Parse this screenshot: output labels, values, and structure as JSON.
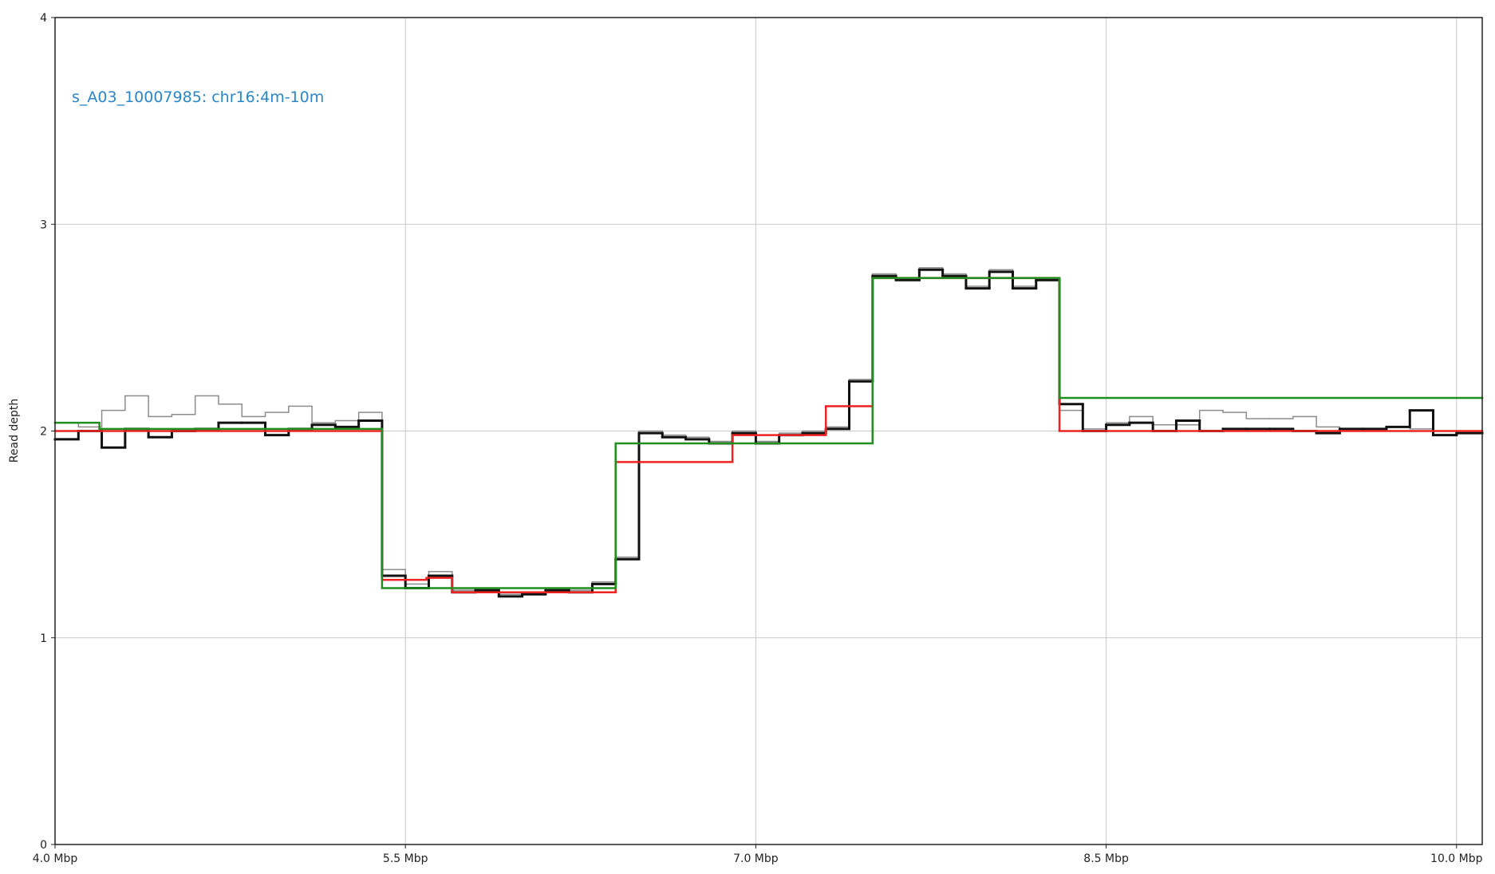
{
  "chart_data": {
    "type": "step",
    "annotation": "s_A03_10007985: chr16:4m-10m",
    "ylabel": "Read depth",
    "xlim": [
      4.0,
      10.11
    ],
    "ylim": [
      0,
      4
    ],
    "xticks": [
      {
        "value": 4.0,
        "label": "4.0 Mbp"
      },
      {
        "value": 5.5,
        "label": "5.5 Mbp"
      },
      {
        "value": 7.0,
        "label": "7.0 Mbp"
      },
      {
        "value": 8.5,
        "label": "8.5 Mbp"
      },
      {
        "value": 10.0,
        "label": "10.0 Mbp"
      }
    ],
    "yticks": [
      0,
      1,
      2,
      3,
      4
    ],
    "grid": true,
    "series": [
      {
        "color": "#8c8c8c",
        "width": 1.5,
        "bins": [
          4.0,
          4.1,
          4.2,
          4.3,
          4.4,
          4.5,
          4.6,
          4.7,
          4.8,
          4.9,
          5.0,
          5.1,
          5.2,
          5.3,
          5.4,
          5.5,
          5.6,
          5.7,
          5.8,
          5.9,
          6.0,
          6.1,
          6.2,
          6.3,
          6.4,
          6.5,
          6.6,
          6.7,
          6.8,
          6.9,
          7.0,
          7.1,
          7.2,
          7.3,
          7.4,
          7.5,
          7.6,
          7.7,
          7.8,
          7.9,
          8.0,
          8.1,
          8.2,
          8.3,
          8.4,
          8.5,
          8.6,
          8.7,
          8.8,
          8.9,
          9.0,
          9.1,
          9.2,
          9.3,
          9.4,
          9.5,
          9.6,
          9.7,
          9.8,
          9.9,
          10.0,
          10.11
        ],
        "values": [
          2.04,
          2.02,
          2.1,
          2.17,
          2.07,
          2.08,
          2.17,
          2.13,
          2.07,
          2.09,
          2.12,
          2.04,
          2.05,
          2.09,
          1.33,
          1.26,
          1.32,
          1.23,
          1.24,
          1.21,
          1.22,
          1.24,
          1.23,
          1.27,
          1.39,
          2.0,
          1.98,
          1.97,
          1.95,
          2.0,
          1.95,
          1.99,
          2.0,
          2.02,
          2.25,
          2.76,
          2.74,
          2.79,
          2.76,
          2.7,
          2.78,
          2.7,
          2.74,
          2.1,
          2.01,
          2.04,
          2.07,
          2.03,
          2.03,
          2.1,
          2.09,
          2.06,
          2.06,
          2.07,
          2.02,
          2.01,
          2.01,
          2.02,
          2.01,
          2.0,
          2.0
        ]
      },
      {
        "color": "#111111",
        "width": 3,
        "bins": [
          4.0,
          4.1,
          4.2,
          4.3,
          4.4,
          4.5,
          4.6,
          4.7,
          4.8,
          4.9,
          5.0,
          5.1,
          5.2,
          5.3,
          5.4,
          5.5,
          5.6,
          5.7,
          5.8,
          5.9,
          6.0,
          6.1,
          6.2,
          6.3,
          6.4,
          6.5,
          6.6,
          6.7,
          6.8,
          6.9,
          7.0,
          7.1,
          7.2,
          7.3,
          7.4,
          7.5,
          7.6,
          7.7,
          7.8,
          7.9,
          8.0,
          8.1,
          8.2,
          8.3,
          8.4,
          8.5,
          8.6,
          8.7,
          8.8,
          8.9,
          9.0,
          9.1,
          9.2,
          9.3,
          9.4,
          9.5,
          9.6,
          9.7,
          9.8,
          9.9,
          10.0,
          10.11
        ],
        "values": [
          1.96,
          2.0,
          1.92,
          2.01,
          1.97,
          2.0,
          2.01,
          2.04,
          2.04,
          1.98,
          2.01,
          2.03,
          2.02,
          2.05,
          1.3,
          1.24,
          1.3,
          1.22,
          1.23,
          1.2,
          1.21,
          1.23,
          1.22,
          1.26,
          1.38,
          1.99,
          1.97,
          1.96,
          1.94,
          1.99,
          1.94,
          1.98,
          1.99,
          2.01,
          2.24,
          2.75,
          2.73,
          2.78,
          2.75,
          2.69,
          2.77,
          2.69,
          2.73,
          2.13,
          2.0,
          2.03,
          2.04,
          2.0,
          2.05,
          2.0,
          2.01,
          2.01,
          2.01,
          2.0,
          1.99,
          2.01,
          2.01,
          2.02,
          2.1,
          1.98,
          1.99
        ]
      },
      {
        "color": "#ee2222",
        "width": 2.5,
        "bins": [
          4.0,
          5.4,
          5.59,
          5.7,
          6.4,
          6.9,
          7.3,
          7.5,
          8.3,
          10.11
        ],
        "values": [
          2.0,
          1.28,
          1.29,
          1.22,
          1.85,
          1.98,
          2.12,
          2.74,
          2.0
        ]
      },
      {
        "color": "#1f8f1f",
        "width": 2.5,
        "bins": [
          4.0,
          4.19,
          5.4,
          6.4,
          7.5,
          8.3,
          10.11
        ],
        "values": [
          2.04,
          2.01,
          1.24,
          1.94,
          2.74,
          2.16
        ]
      }
    ]
  }
}
